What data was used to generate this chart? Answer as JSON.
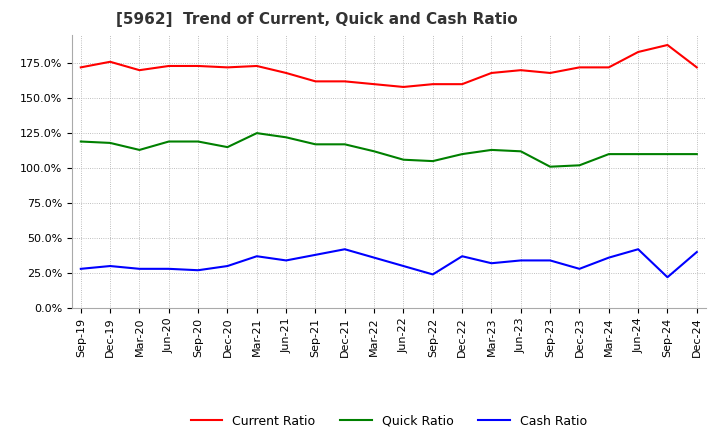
{
  "title": "[5962]  Trend of Current, Quick and Cash Ratio",
  "x_labels": [
    "Sep-19",
    "Dec-19",
    "Mar-20",
    "Jun-20",
    "Sep-20",
    "Dec-20",
    "Mar-21",
    "Jun-21",
    "Sep-21",
    "Dec-21",
    "Mar-22",
    "Jun-22",
    "Sep-22",
    "Dec-22",
    "Mar-23",
    "Jun-23",
    "Sep-23",
    "Dec-23",
    "Mar-24",
    "Jun-24",
    "Sep-24",
    "Dec-24"
  ],
  "current_ratio": [
    1.72,
    1.76,
    1.7,
    1.73,
    1.73,
    1.72,
    1.73,
    1.68,
    1.62,
    1.62,
    1.6,
    1.58,
    1.6,
    1.6,
    1.68,
    1.7,
    1.68,
    1.72,
    1.72,
    1.83,
    1.88,
    1.72
  ],
  "quick_ratio": [
    1.19,
    1.18,
    1.13,
    1.19,
    1.19,
    1.15,
    1.25,
    1.22,
    1.17,
    1.17,
    1.12,
    1.06,
    1.05,
    1.1,
    1.13,
    1.12,
    1.01,
    1.02,
    1.1,
    1.1,
    1.1,
    1.1
  ],
  "cash_ratio": [
    0.28,
    0.3,
    0.28,
    0.28,
    0.27,
    0.3,
    0.37,
    0.34,
    0.38,
    0.42,
    0.36,
    0.3,
    0.24,
    0.37,
    0.32,
    0.34,
    0.34,
    0.28,
    0.36,
    0.42,
    0.22,
    0.4
  ],
  "current_color": "#FF0000",
  "quick_color": "#008000",
  "cash_color": "#0000FF",
  "ylim": [
    0.0,
    1.95
  ],
  "yticks": [
    0.0,
    0.25,
    0.5,
    0.75,
    1.0,
    1.25,
    1.5,
    1.75
  ],
  "ytick_labels": [
    "0.0%",
    "25.0%",
    "50.0%",
    "75.0%",
    "100.0%",
    "125.0%",
    "150.0%",
    "175.0%"
  ],
  "background_color": "#FFFFFF",
  "grid_color": "#AAAAAA",
  "title_fontsize": 11,
  "tick_fontsize": 8,
  "legend_fontsize": 9,
  "line_width": 1.5
}
